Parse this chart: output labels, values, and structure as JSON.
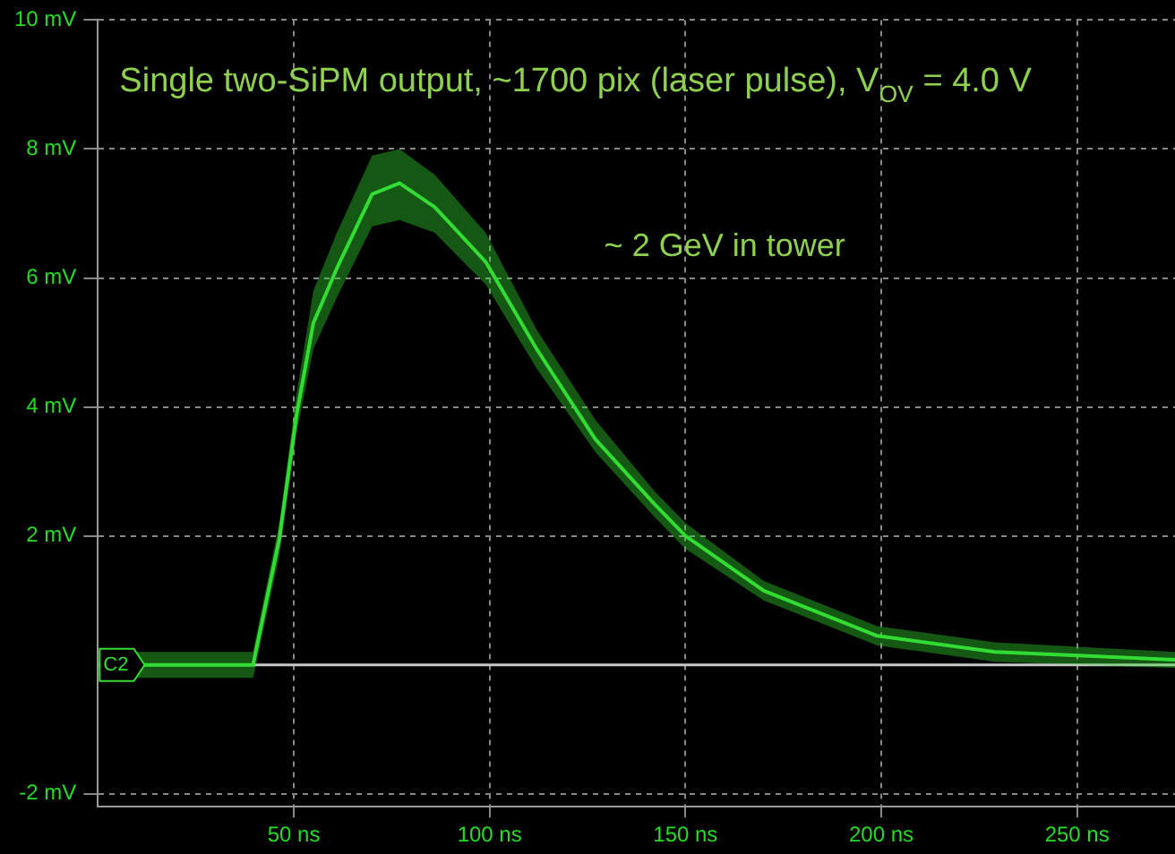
{
  "chart_data": {
    "type": "line",
    "title": "Single two-SiPM output, ~1700 pix (laser pulse), V$_{OV}$ = 4.0 V",
    "annotations": [
      "~ 2 GeV in tower"
    ],
    "x": [
      0,
      10,
      20,
      30,
      39.6,
      46.3,
      50.7,
      55,
      61,
      70,
      77,
      86,
      99,
      112,
      127,
      142,
      150,
      170,
      199,
      229,
      275
    ],
    "series": [
      {
        "color": "#33dd33",
        "values": [
          0,
          0,
          0,
          0,
          0,
          1.95,
          3.87,
          5.3,
          6.15,
          7.3,
          7.47,
          7.1,
          6.25,
          4.9,
          3.5,
          2.5,
          2.0,
          1.15,
          0.45,
          0.2,
          0.08
        ],
        "lower": [
          -0.2,
          -0.2,
          -0.2,
          -0.2,
          -0.2,
          1.7,
          3.6,
          4.9,
          5.7,
          6.8,
          6.9,
          6.7,
          5.9,
          4.6,
          3.3,
          2.3,
          1.8,
          1.0,
          0.3,
          0.05,
          -0.05
        ],
        "upper": [
          0.2,
          0.2,
          0.2,
          0.2,
          0.2,
          2.2,
          4.2,
          5.8,
          6.7,
          7.9,
          8.0,
          7.6,
          6.7,
          5.2,
          3.8,
          2.7,
          2.2,
          1.3,
          0.6,
          0.35,
          0.2
        ]
      }
    ],
    "xlim": [
      0,
      275
    ],
    "xticks": [
      {
        "value": 50,
        "label": "50 ns"
      },
      {
        "value": 100,
        "label": "100 ns"
      },
      {
        "value": 150,
        "label": "150 ns"
      },
      {
        "value": 200,
        "label": "200 ns"
      },
      {
        "value": 250,
        "label": "250 ns"
      }
    ],
    "ylim": [
      -2.2,
      10
    ],
    "yticks": [
      {
        "value": -2,
        "label": "-2 mV"
      },
      {
        "value": 2,
        "label": "2 mV"
      },
      {
        "value": 4,
        "label": "4 mV"
      },
      {
        "value": 6,
        "label": "6 mV"
      },
      {
        "value": 8,
        "label": "8 mV"
      },
      {
        "value": 10,
        "label": "10 mV"
      }
    ],
    "ref_lines": [
      {
        "axis": "y",
        "value": 0,
        "label": "C2",
        "color": "#c8c8c8"
      }
    ],
    "grid": true,
    "legend": false,
    "marker": "none",
    "line_style": "solid"
  }
}
